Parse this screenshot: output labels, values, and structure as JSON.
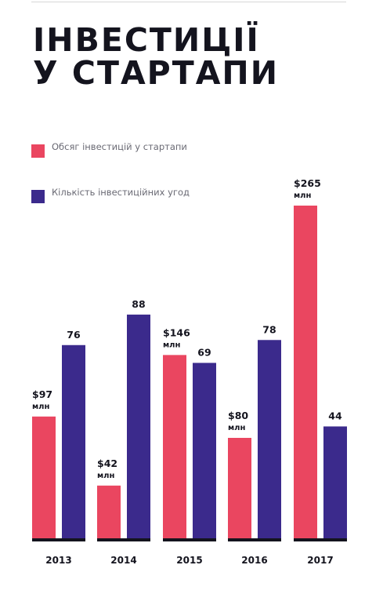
{
  "title": {
    "line1": "ІНВЕСТИЦІЇ",
    "line2": "У СТАРТАПИ"
  },
  "colors": {
    "investment": "#ea4660",
    "deals": "#3b2a8c",
    "baseline": "#14141e"
  },
  "chart_data": {
    "type": "bar",
    "categories": [
      "2013",
      "2014",
      "2015",
      "2016",
      "2017"
    ],
    "series": [
      {
        "name": "Обсяг інвестицій у стартапи",
        "color": "#ea4660",
        "values": [
          97,
          42,
          146,
          80,
          265
        ],
        "labels": [
          "$97",
          "$42",
          "$146",
          "$80",
          "$265"
        ],
        "unit_label": "млн"
      },
      {
        "name": "Кількість інвестиційних угод",
        "color": "#3b2a8c",
        "values": [
          76,
          88,
          69,
          78,
          44
        ],
        "labels": [
          "76",
          "88",
          "69",
          "78",
          "44"
        ]
      }
    ],
    "title": "ІНВЕСТИЦІЇ У СТАРТАПИ",
    "legend": "top-left",
    "grid": false
  }
}
